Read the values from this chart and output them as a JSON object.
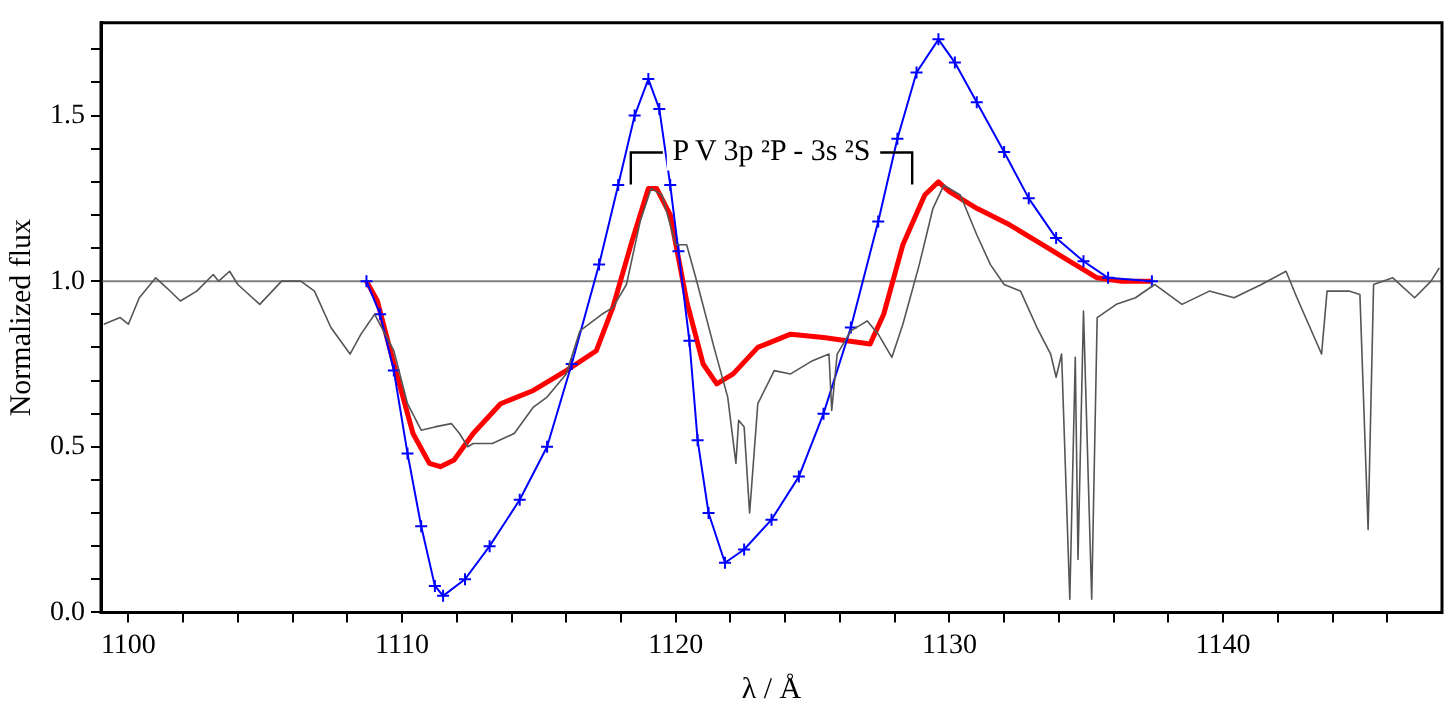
{
  "chart_data": {
    "type": "line",
    "xlabel": "λ / Å",
    "ylabel": "Normalized flux",
    "xlim": [
      1099,
      1148
    ],
    "ylim": [
      0,
      1.78
    ],
    "xticks": [
      {
        "value": 1100,
        "label": "1100"
      },
      {
        "value": 1102,
        "label": null
      },
      {
        "value": 1104,
        "label": null
      },
      {
        "value": 1106,
        "label": null
      },
      {
        "value": 1108,
        "label": null
      },
      {
        "value": 1110,
        "label": "1110"
      },
      {
        "value": 1112,
        "label": null
      },
      {
        "value": 1114,
        "label": null
      },
      {
        "value": 1116,
        "label": null
      },
      {
        "value": 1118,
        "label": null
      },
      {
        "value": 1120,
        "label": "1120"
      },
      {
        "value": 1122,
        "label": null
      },
      {
        "value": 1124,
        "label": null
      },
      {
        "value": 1126,
        "label": null
      },
      {
        "value": 1128,
        "label": null
      },
      {
        "value": 1130,
        "label": "1130"
      },
      {
        "value": 1132,
        "label": null
      },
      {
        "value": 1134,
        "label": null
      },
      {
        "value": 1136,
        "label": null
      },
      {
        "value": 1138,
        "label": null
      },
      {
        "value": 1140,
        "label": "1140"
      },
      {
        "value": 1142,
        "label": null
      },
      {
        "value": 1144,
        "label": null
      },
      {
        "value": 1146,
        "label": null
      }
    ],
    "yticks": [
      {
        "value": 0,
        "label": "0.0"
      },
      {
        "value": 0.1,
        "label": null
      },
      {
        "value": 0.2,
        "label": null
      },
      {
        "value": 0.3,
        "label": null
      },
      {
        "value": 0.4,
        "label": null
      },
      {
        "value": 0.5,
        "label": "0.5"
      },
      {
        "value": 0.6,
        "label": null
      },
      {
        "value": 0.7,
        "label": null
      },
      {
        "value": 0.8,
        "label": null
      },
      {
        "value": 0.9,
        "label": null
      },
      {
        "value": 1,
        "label": "1.0"
      },
      {
        "value": 1.1,
        "label": null
      },
      {
        "value": 1.2,
        "label": null
      },
      {
        "value": 1.3,
        "label": null
      },
      {
        "value": 1.4,
        "label": null
      },
      {
        "value": 1.5,
        "label": "1.5"
      },
      {
        "value": 1.6,
        "label": null
      },
      {
        "value": 1.7,
        "label": null
      }
    ],
    "grid": false,
    "legend": false,
    "marker": "none",
    "line_style": "solid",
    "ref_lines": [
      {
        "axis": "y",
        "value": 1,
        "color": "#808080"
      }
    ],
    "annotations": [
      "P V 3p ²P - 3s ²S"
    ],
    "series": [
      {
        "color": "#555555",
        "x": [
          1099.1,
          1099.7,
          1100.0,
          1100.4,
          1101.0,
          1101.4,
          1101.9,
          1102.5,
          1103.1,
          1103.3,
          1103.7,
          1104.0,
          1104.8,
          1105.6,
          1106.3,
          1106.8,
          1107.4,
          1108.1,
          1108.5,
          1109.0,
          1109.7,
          1110.2,
          1110.7,
          1111.2,
          1111.8,
          1112.1,
          1112.4,
          1112.6,
          1113.3,
          1114.1,
          1114.8,
          1115.3,
          1116.0,
          1116.5,
          1117.3,
          1117.7,
          1118.2,
          1118.7,
          1119.1,
          1119.5,
          1120.0,
          1120.4,
          1120.8,
          1121.4,
          1121.9,
          1122.2,
          1122.3,
          1122.5,
          1122.7,
          1123.0,
          1123.6,
          1124.2,
          1125.0,
          1125.6,
          1125.7,
          1125.9,
          1126.4,
          1127.0,
          1127.4,
          1127.9,
          1128.3,
          1128.9,
          1129.4,
          1129.8,
          1130.4,
          1131.0,
          1131.5,
          1132.0,
          1132.6,
          1133.2,
          1133.7,
          1133.9,
          1134.1,
          1134.4,
          1134.6,
          1134.7,
          1134.9,
          1135.2,
          1135.4,
          1136.1,
          1136.8,
          1137.5,
          1138.5,
          1139.5,
          1140.4,
          1141.4,
          1142.3,
          1142.7,
          1143.6,
          1143.8,
          1144.6,
          1145.0,
          1145.3,
          1145.5,
          1146.2,
          1147.0,
          1147.6,
          1147.9
        ],
        "values": [
          0.87,
          0.89,
          0.87,
          0.95,
          1.01,
          0.98,
          0.94,
          0.97,
          1.02,
          1.0,
          1.03,
          0.99,
          0.93,
          1.0,
          1.0,
          0.97,
          0.86,
          0.78,
          0.84,
          0.9,
          0.79,
          0.63,
          0.55,
          0.56,
          0.57,
          0.54,
          0.5,
          0.51,
          0.51,
          0.54,
          0.62,
          0.65,
          0.72,
          0.85,
          0.9,
          0.92,
          0.99,
          1.18,
          1.28,
          1.26,
          1.11,
          1.11,
          0.99,
          0.8,
          0.65,
          0.45,
          0.58,
          0.56,
          0.3,
          0.63,
          0.73,
          0.72,
          0.76,
          0.78,
          0.61,
          0.78,
          0.85,
          0.88,
          0.84,
          0.77,
          0.87,
          1.05,
          1.22,
          1.29,
          1.26,
          1.14,
          1.05,
          0.99,
          0.97,
          0.86,
          0.78,
          0.71,
          0.78,
          0.04,
          0.77,
          0.16,
          0.91,
          0.04,
          0.89,
          0.93,
          0.95,
          0.99,
          0.93,
          0.97,
          0.95,
          0.99,
          1.03,
          0.95,
          0.78,
          0.97,
          0.97,
          0.96,
          0.25,
          0.99,
          1.01,
          0.95,
          1.0,
          1.04
        ]
      },
      {
        "color": "#0000ff",
        "marker": "cross",
        "x": [
          1108.7,
          1109.2,
          1109.7,
          1110.2,
          1110.7,
          1111.2,
          1111.5,
          1112.3,
          1113.2,
          1114.3,
          1115.3,
          1116.2,
          1117.2,
          1117.9,
          1118.5,
          1119.0,
          1119.4,
          1119.8,
          1120.1,
          1120.5,
          1120.8,
          1121.2,
          1121.8,
          1122.5,
          1123.5,
          1124.5,
          1125.4,
          1126.4,
          1127.4,
          1128.1,
          1128.8,
          1129.6,
          1130.2,
          1131.0,
          1132.0,
          1132.9,
          1133.9,
          1134.9,
          1135.8,
          1137.4
        ],
        "values": [
          1.0,
          0.9,
          0.73,
          0.48,
          0.26,
          0.08,
          0.05,
          0.1,
          0.2,
          0.34,
          0.5,
          0.75,
          1.05,
          1.29,
          1.5,
          1.61,
          1.52,
          1.29,
          1.09,
          0.82,
          0.52,
          0.3,
          0.15,
          0.19,
          0.28,
          0.41,
          0.6,
          0.86,
          1.18,
          1.43,
          1.63,
          1.73,
          1.66,
          1.54,
          1.39,
          1.25,
          1.13,
          1.06,
          1.01,
          1.0
        ]
      },
      {
        "color": "#ff0000",
        "x": [
          1108.7,
          1109.1,
          1109.7,
          1110.4,
          1111.0,
          1111.4,
          1111.9,
          1112.6,
          1113.6,
          1114.8,
          1116.0,
          1117.1,
          1117.7,
          1118.4,
          1119.0,
          1119.3,
          1119.8,
          1120.4,
          1121.0,
          1121.5,
          1122.1,
          1123.0,
          1124.2,
          1125.4,
          1127.1,
          1127.6,
          1128.3,
          1129.1,
          1129.6,
          1130.0,
          1131.0,
          1132.2,
          1133.4,
          1134.4,
          1135.4,
          1136.3,
          1137.4
        ],
        "values": [
          1.0,
          0.94,
          0.75,
          0.54,
          0.45,
          0.44,
          0.46,
          0.54,
          0.63,
          0.67,
          0.73,
          0.79,
          0.92,
          1.12,
          1.28,
          1.28,
          1.2,
          0.94,
          0.75,
          0.69,
          0.72,
          0.8,
          0.84,
          0.83,
          0.81,
          0.9,
          1.11,
          1.26,
          1.3,
          1.27,
          1.22,
          1.17,
          1.11,
          1.06,
          1.01,
          1.0,
          1.0
        ]
      }
    ]
  }
}
